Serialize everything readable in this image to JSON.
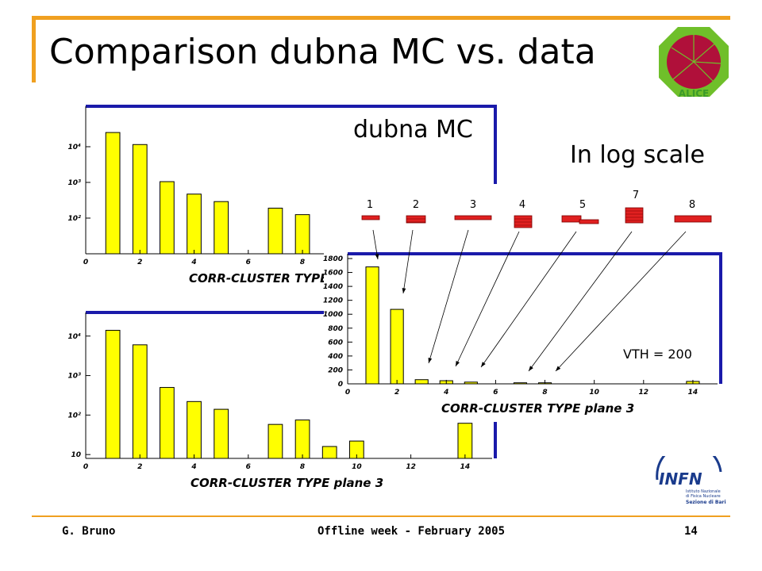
{
  "slide": {
    "title": "Comparison dubna MC vs. data",
    "annotation_dubna": "dubna MC",
    "annotation_log": "In log scale",
    "vth_label": "VTH = 200",
    "footer_left": "G. Bruno",
    "footer_center": "Offline week - February  2005",
    "footer_right": "14",
    "pattern_labels": [
      "1",
      "2",
      "3",
      "4",
      "5",
      "7",
      "8"
    ],
    "colors": {
      "accent": "#f0a020",
      "bar": "#ffff00",
      "frame": "#1a1aaa",
      "pattern": "#e02020"
    },
    "logos": {
      "alice": "ALICE",
      "infn": "INFN",
      "infn_sub": [
        "Istituto Nazionale",
        "di Fisica Nucleare",
        "Sezione di Bari"
      ]
    }
  },
  "chart_data": [
    {
      "id": "top",
      "type": "bar",
      "xlabel": "CORR-CLUSTER TYPE",
      "log_y": true,
      "xlim": [
        0,
        15
      ],
      "ylim": [
        10,
        100000
      ],
      "x_ticks": [
        0,
        2,
        4,
        6,
        8
      ],
      "y_ticks": [
        100,
        1000,
        10000
      ],
      "y_tick_labels": [
        "10²",
        "10³",
        "10⁴"
      ],
      "x": [
        1,
        2,
        3,
        4,
        5,
        7,
        8
      ],
      "values": [
        25000,
        11500,
        1050,
        470,
        290,
        190,
        125
      ]
    },
    {
      "id": "bottom",
      "type": "bar",
      "xlabel": "CORR-CLUSTER TYPE  plane 3",
      "log_y": true,
      "xlim": [
        0,
        15
      ],
      "ylim": [
        8,
        30000
      ],
      "x_ticks": [
        0,
        2,
        4,
        6,
        8,
        10,
        12,
        14
      ],
      "y_ticks": [
        10,
        100,
        1000,
        10000
      ],
      "y_tick_labels": [
        "10",
        "10²",
        "10³",
        "10⁴"
      ],
      "x": [
        1,
        2,
        3,
        4,
        5,
        7,
        8,
        9,
        10,
        14
      ],
      "values": [
        14000,
        6000,
        500,
        220,
        140,
        58,
        75,
        16,
        22,
        62
      ]
    },
    {
      "id": "inset",
      "type": "bar",
      "xlabel": "CORR-CLUSTER TYPE  plane 3",
      "log_y": false,
      "xlim": [
        0,
        15
      ],
      "ylim": [
        0,
        1800
      ],
      "x_ticks": [
        0,
        2,
        4,
        6,
        8,
        10,
        12,
        14
      ],
      "y_ticks": [
        0,
        200,
        400,
        600,
        800,
        1000,
        1200,
        1400,
        1600,
        1800
      ],
      "y_tick_labels": [
        "0",
        "200",
        "400",
        "600",
        "800",
        "1000",
        "1200",
        "1400",
        "1600",
        "1800"
      ],
      "x": [
        1,
        2,
        3,
        4,
        5,
        7,
        8,
        14
      ],
      "values": [
        1680,
        1070,
        60,
        45,
        25,
        15,
        15,
        35
      ]
    }
  ]
}
